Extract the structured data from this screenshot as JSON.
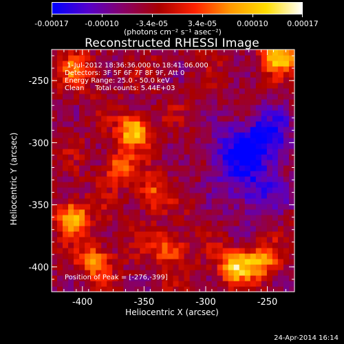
{
  "colorbar": {
    "ticks": [
      "-0.00017",
      "-0.00010",
      "-3.4e-05",
      "3.4e-05",
      "0.00010",
      "0.00017"
    ],
    "tick_values": [
      -0.00017,
      -0.0001,
      -3.4e-05,
      3.4e-05,
      0.0001,
      0.00017
    ],
    "range": [
      -0.00017,
      0.00017
    ],
    "units": "(photons cm⁻² s⁻¹ asec⁻²)",
    "colors": [
      "#0000ff",
      "#5500cc",
      "#880066",
      "#aa0000",
      "#ff2200",
      "#ff9900",
      "#ffdd00",
      "#ffffff"
    ]
  },
  "chart_data": {
    "type": "heatmap",
    "title": "Reconstructed RHESSI Image",
    "xlabel": "Heliocentric X (arcsec)",
    "ylabel": "Heliocentric Y (arcsec)",
    "xlim": [
      -425,
      -228
    ],
    "ylim": [
      -420,
      -225
    ],
    "x_ticks": [
      -400,
      -350,
      -300,
      -250
    ],
    "y_ticks": [
      -400,
      -350,
      -300,
      -250
    ],
    "info_lines": [
      " 1-Jul-2012 18:36:36.000 to 18:41:06.000",
      "Detectors: 3F 5F 6F 7F 8F 9F, Att 0",
      "Energy Range: 25.0 - 50.0 keV",
      "Clean     Total counts: 5.44E+03"
    ],
    "peak_text": "Position of Peak = [-276,-399]",
    "peak": [
      -276,
      -399
    ],
    "bright_sources": [
      {
        "x": -358,
        "y": -290,
        "value": 0.00017
      },
      {
        "x": -408,
        "y": -360,
        "value": 0.00016
      },
      {
        "x": -390,
        "y": -395,
        "value": 0.00012
      },
      {
        "x": -330,
        "y": -385,
        "value": 0.00011
      },
      {
        "x": -276,
        "y": -399,
        "value": 0.00017
      },
      {
        "x": -255,
        "y": -395,
        "value": 0.00013
      },
      {
        "x": -240,
        "y": -230,
        "value": 0.00016
      },
      {
        "x": -405,
        "y": -240,
        "value": 0.0001
      },
      {
        "x": -345,
        "y": -340,
        "value": 9e-05
      },
      {
        "x": -370,
        "y": -320,
        "value": 0.0001
      }
    ],
    "dark_sources": [
      {
        "x": -252,
        "y": -296,
        "value": -0.00017
      },
      {
        "x": -280,
        "y": -310,
        "value": -0.00012
      },
      {
        "x": -260,
        "y": -340,
        "value": -0.00012
      }
    ]
  },
  "timestamp": "24-Apr-2014 16:14"
}
